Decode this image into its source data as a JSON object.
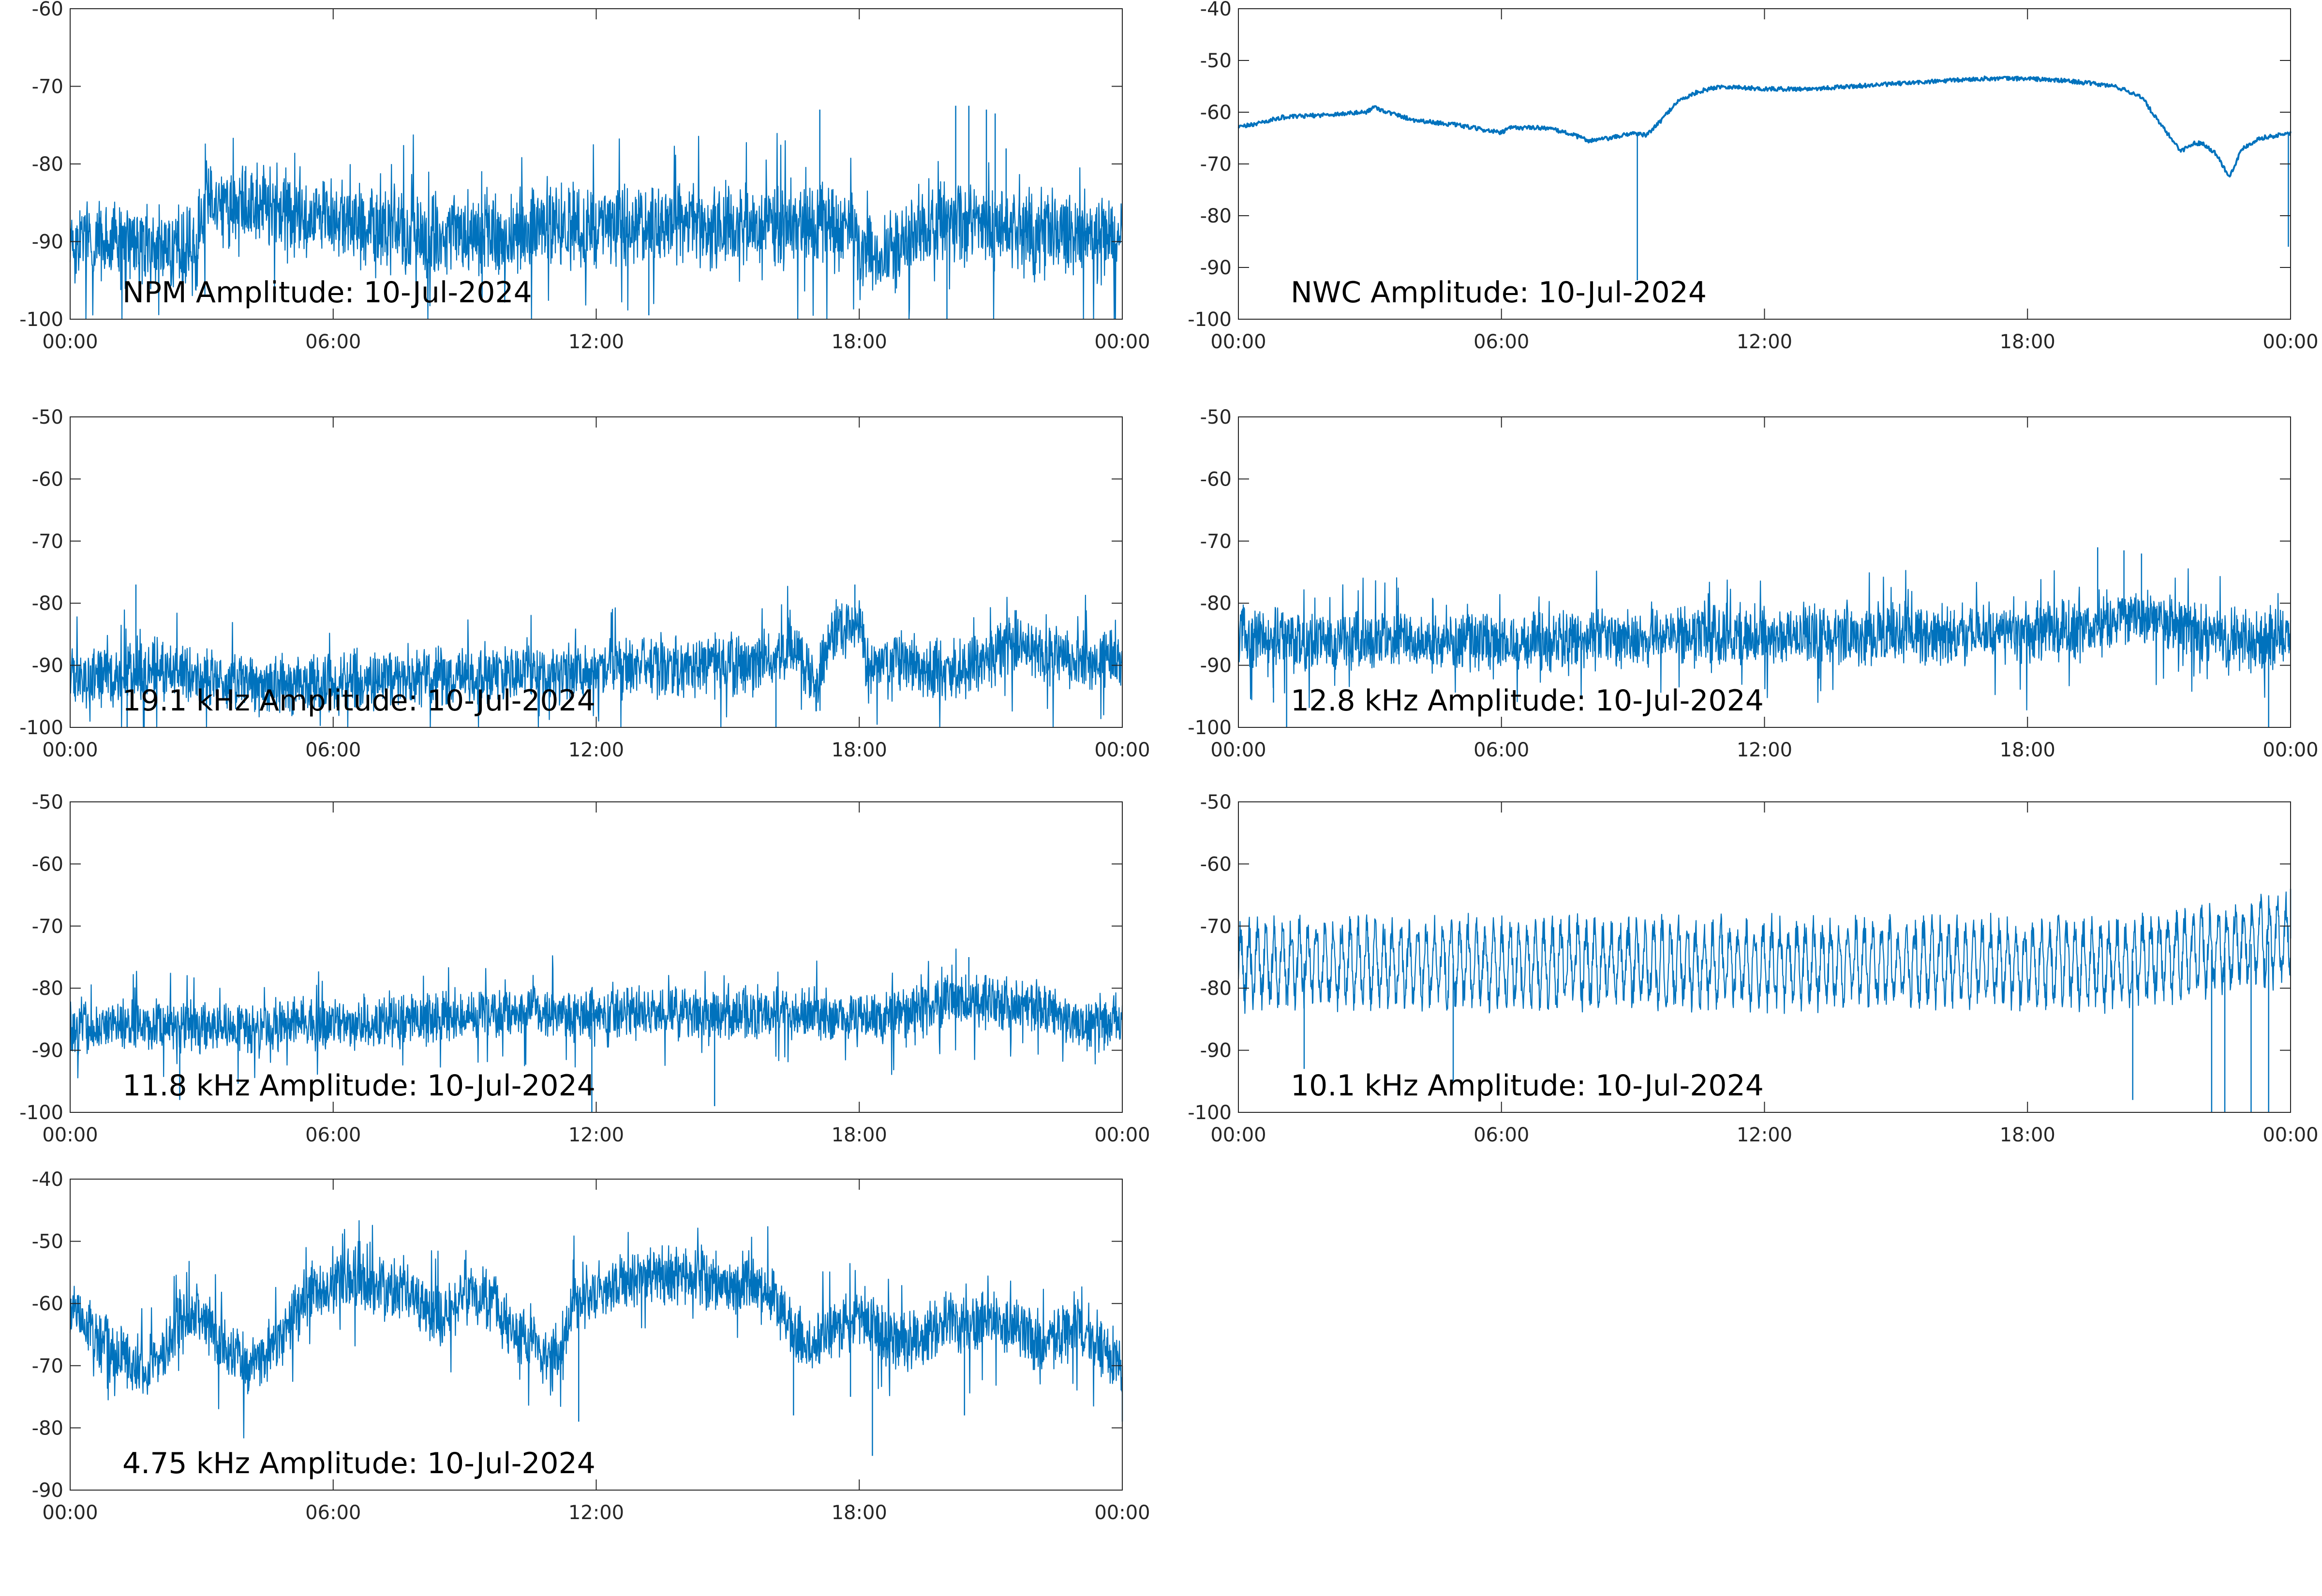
{
  "line_color": "#0072BD",
  "chart_data": [
    {
      "type": "line",
      "title": "NPM Amplitude: 10-Jul-2024",
      "xlabel": "",
      "ylabel": "",
      "xlim": [
        "00:00",
        "24:00"
      ],
      "ylim": [
        -100,
        -60
      ],
      "x_ticks": [
        "00:00",
        "06:00",
        "12:00",
        "18:00",
        "00:00"
      ],
      "y_ticks": [
        -100,
        -90,
        -80,
        -70,
        -60
      ],
      "noise": "high",
      "series": [
        {
          "x_hours": [
            0,
            1,
            2,
            2.9,
            3,
            4,
            5,
            6,
            7,
            8,
            9,
            10,
            11,
            12,
            13,
            14,
            15,
            16,
            17,
            17.9,
            18,
            19,
            19.5,
            20,
            21,
            22,
            23,
            24
          ],
          "values": [
            -90,
            -90,
            -91,
            -91,
            -85,
            -85,
            -86,
            -87,
            -88,
            -89,
            -89,
            -89,
            -88,
            -88,
            -88,
            -88,
            -88,
            -88,
            -88,
            -88,
            -92,
            -91,
            -88,
            -87,
            -88,
            -89,
            -89,
            -90
          ],
          "spread": 4.5,
          "spikes": [
            [
              17.1,
              -73
            ],
            [
              20.2,
              -72.5
            ],
            [
              20.5,
              -72.5
            ],
            [
              20.9,
              -73
            ],
            [
              21.1,
              -73.5
            ],
            [
              21.35,
              -78
            ],
            [
              20,
              -100
            ],
            [
              13.2,
              -99.5
            ]
          ]
        }
      ]
    },
    {
      "type": "line",
      "title": "NWC Amplitude: 10-Jul-2024",
      "xlabel": "",
      "ylabel": "",
      "xlim": [
        "00:00",
        "24:00"
      ],
      "ylim": [
        -100,
        -40
      ],
      "x_ticks": [
        "00:00",
        "06:00",
        "12:00",
        "18:00",
        "00:00"
      ],
      "y_ticks": [
        -100,
        -90,
        -80,
        -70,
        -60,
        -50,
        -40
      ],
      "noise": "low",
      "series": [
        {
          "x_hours": [
            0,
            0.5,
            1,
            2,
            2.9,
            3.1,
            3.4,
            4,
            5,
            6,
            6.2,
            7,
            7.5,
            8,
            8.5,
            9,
            9.3,
            9.6,
            10,
            10.5,
            11,
            12,
            13,
            14,
            15,
            16,
            17,
            18,
            19,
            20,
            20.6,
            21,
            21.5,
            21.8,
            22,
            22.3,
            22.6,
            22.9,
            23.3,
            23.7,
            24
          ],
          "values": [
            -63,
            -62,
            -61,
            -60.5,
            -60,
            -59,
            -60,
            -61.5,
            -62.5,
            -64,
            -63,
            -63,
            -64,
            -65.5,
            -65,
            -64,
            -64.5,
            -62,
            -58,
            -56,
            -55,
            -55.5,
            -55.5,
            -55,
            -54.5,
            -54,
            -53.5,
            -53.5,
            -54,
            -55,
            -57,
            -62,
            -67.5,
            -66,
            -66,
            -68,
            -72.5,
            -67,
            -65,
            -64.5,
            -64
          ],
          "spread": 0.8,
          "spikes": [
            [
              9.1,
              -92.5
            ],
            [
              23.95,
              -86
            ]
          ]
        }
      ]
    },
    {
      "type": "line",
      "title": "19.1 kHz Amplitude: 10-Jul-2024",
      "xlabel": "",
      "ylabel": "",
      "xlim": [
        "00:00",
        "24:00"
      ],
      "ylim": [
        -100,
        -50
      ],
      "x_ticks": [
        "00:00",
        "06:00",
        "12:00",
        "18:00",
        "00:00"
      ],
      "y_ticks": [
        -100,
        -90,
        -80,
        -70,
        -60,
        -50
      ],
      "noise": "high",
      "series": [
        {
          "x_hours": [
            0,
            1,
            1.5,
            2,
            3,
            4,
            5,
            6,
            7,
            8,
            9,
            10,
            11,
            12,
            13,
            14,
            15,
            16,
            16.5,
            17,
            17.3,
            17.6,
            18,
            18.2,
            19,
            20,
            21,
            21.5,
            22,
            23,
            24
          ],
          "values": [
            -92,
            -92,
            -92,
            -90,
            -92,
            -93,
            -93,
            -93,
            -92,
            -92,
            -92,
            -91,
            -91,
            -91,
            -90,
            -90,
            -90,
            -90,
            -86,
            -93,
            -86,
            -84,
            -83,
            -90,
            -89,
            -91,
            -89,
            -86,
            -88,
            -89,
            -89
          ],
          "spread": 4,
          "spikes": [
            [
              1.5,
              -77
            ],
            [
              17.9,
              -77
            ],
            [
              1.3,
              -100
            ],
            [
              16.1,
              -100
            ]
          ]
        }
      ]
    },
    {
      "type": "line",
      "title": "12.8 kHz Amplitude: 10-Jul-2024",
      "xlabel": "",
      "ylabel": "",
      "xlim": [
        "00:00",
        "24:00"
      ],
      "ylim": [
        -100,
        -50
      ],
      "x_ticks": [
        "00:00",
        "06:00",
        "12:00",
        "18:00",
        "00:00"
      ],
      "y_ticks": [
        -100,
        -90,
        -80,
        -70,
        -60,
        -50
      ],
      "noise": "high",
      "series": [
        {
          "x_hours": [
            0,
            2,
            4,
            6,
            8,
            10,
            12,
            14,
            16,
            18,
            19.5,
            20,
            21,
            22,
            23,
            24
          ],
          "values": [
            -85,
            -86,
            -86,
            -86,
            -86,
            -85,
            -85,
            -85,
            -85,
            -85,
            -84,
            -82,
            -83,
            -85,
            -86,
            -85
          ],
          "spread": 4,
          "spikes": [
            [
              19.6,
              -71
            ],
            [
              20.2,
              -71.5
            ],
            [
              20.6,
              -72
            ],
            [
              0.8,
              -96
            ],
            [
              1.1,
              -100
            ],
            [
              23.5,
              -100
            ]
          ]
        }
      ]
    },
    {
      "type": "line",
      "title": "11.8 kHz Amplitude: 10-Jul-2024",
      "xlabel": "",
      "ylabel": "",
      "xlim": [
        "00:00",
        "24:00"
      ],
      "ylim": [
        -100,
        -50
      ],
      "x_ticks": [
        "00:00",
        "06:00",
        "12:00",
        "18:00",
        "00:00"
      ],
      "y_ticks": [
        -100,
        -90,
        -80,
        -70,
        -60,
        -50
      ],
      "noise": "high",
      "series": [
        {
          "x_hours": [
            0,
            2,
            4,
            6,
            8,
            10,
            12,
            14,
            16,
            18,
            19,
            20,
            21,
            22,
            23,
            24
          ],
          "values": [
            -86,
            -86,
            -86,
            -86,
            -85,
            -84,
            -84,
            -84,
            -84,
            -85,
            -84,
            -82,
            -82,
            -83,
            -86,
            -85
          ],
          "spread": 3.5,
          "spikes": [
            [
              11.9,
              -100
            ],
            [
              14.7,
              -99
            ],
            [
              2.5,
              -98
            ],
            [
              20.5,
              -75
            ]
          ]
        }
      ]
    },
    {
      "type": "line",
      "title": "10.1 kHz Amplitude: 10-Jul-2024",
      "xlabel": "",
      "ylabel": "",
      "xlim": [
        "00:00",
        "24:00"
      ],
      "ylim": [
        -100,
        -50
      ],
      "x_ticks": [
        "00:00",
        "06:00",
        "12:00",
        "18:00",
        "00:00"
      ],
      "y_ticks": [
        -100,
        -90,
        -80,
        -70,
        -60,
        -50
      ],
      "noise": "oscillating",
      "series": [
        {
          "x_hours": [
            0,
            2,
            4,
            6,
            8,
            10,
            12,
            14,
            16,
            18,
            20,
            21,
            22,
            23,
            24
          ],
          "values": [
            -76,
            -76,
            -76,
            -76,
            -76,
            -76,
            -76,
            -76,
            -76,
            -76,
            -76,
            -75,
            -74,
            -73,
            -72
          ],
          "spread": 6,
          "spikes": [
            [
              1.5,
              -93
            ],
            [
              4.9,
              -95
            ],
            [
              22.2,
              -100
            ],
            [
              22.5,
              -100
            ],
            [
              23.1,
              -100
            ],
            [
              23.5,
              -100
            ],
            [
              20.4,
              -98
            ],
            [
              24,
              -64
            ]
          ]
        }
      ]
    },
    {
      "type": "line",
      "title": "4.75 kHz Amplitude: 10-Jul-2024",
      "xlabel": "",
      "ylabel": "",
      "xlim": [
        "00:00",
        "24:00"
      ],
      "ylim": [
        -90,
        -40
      ],
      "x_ticks": [
        "00:00",
        "06:00",
        "12:00",
        "18:00",
        "00:00"
      ],
      "y_ticks": [
        -90,
        -80,
        -70,
        -60,
        -50,
        -40
      ],
      "noise": "high",
      "series": [
        {
          "x_hours": [
            0,
            0.5,
            1,
            1.5,
            2,
            2.5,
            3,
            3.5,
            4,
            4.5,
            5,
            5.5,
            6,
            6.5,
            7,
            7.5,
            8,
            8.5,
            9,
            9.5,
            10,
            10.5,
            11,
            11.5,
            12,
            12.5,
            13,
            13.5,
            14,
            14.5,
            15,
            15.5,
            16,
            16.5,
            17,
            17.5,
            18,
            18.5,
            19,
            19.5,
            20,
            20.5,
            21,
            21.5,
            22,
            22.5,
            23,
            23.5,
            24
          ],
          "values": [
            -60,
            -65,
            -68,
            -70,
            -69,
            -63,
            -62,
            -67,
            -70,
            -68,
            -63,
            -58,
            -57,
            -57,
            -57,
            -58,
            -60,
            -62,
            -58,
            -59,
            -64,
            -66,
            -70,
            -60,
            -58,
            -57,
            -56,
            -55.5,
            -55,
            -56,
            -57,
            -57,
            -58,
            -65,
            -66,
            -64,
            -62,
            -65,
            -66,
            -65,
            -63,
            -64,
            -62,
            -64,
            -66,
            -66,
            -64,
            -67,
            -70
          ],
          "spread": 4,
          "spikes": [
            [
              16.5,
              -78
            ],
            [
              17.8,
              -75
            ],
            [
              18.3,
              -84.5
            ],
            [
              11.6,
              -79
            ],
            [
              20.4,
              -78
            ],
            [
              24,
              -79
            ]
          ]
        }
      ]
    }
  ]
}
